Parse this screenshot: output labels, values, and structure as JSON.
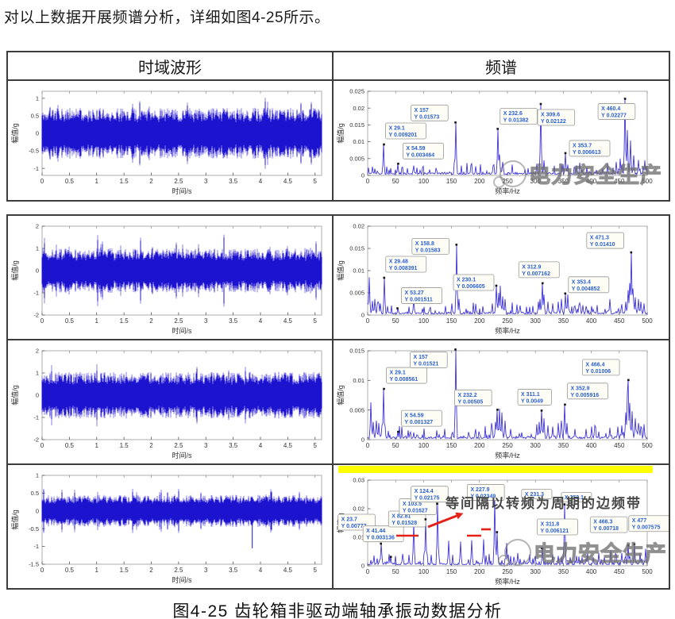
{
  "page": {
    "intro": "对以上数据开展频谱分析，详细如图4-25所示。",
    "caption": "图4-25 齿轮箱非驱动端轴承振动数据分析"
  },
  "table": {
    "headers": [
      "时域波形",
      "频谱"
    ]
  },
  "watermark": {
    "text": "电力安全生产"
  },
  "colors": {
    "waveform": "#1c13cf",
    "waveform_light": "#8a80ea",
    "spectrum": "#4036d6",
    "datatip_text": "#2a5fd0",
    "datatip_bg": "#fdfdf6",
    "datatip_border": "#999999",
    "highlight": "#ffff00",
    "annotation_red": "#e32116",
    "axis": "#9a9a9a",
    "tick_text": "#333333"
  },
  "chart_data": [
    {
      "slot": "time-1",
      "type": "line",
      "kind": "time",
      "seed": 11,
      "xlabel": "时间/s",
      "ylabel": "幅值/g",
      "xlim": [
        0,
        5.12
      ],
      "xtick_labels": [
        "0",
        "0.5",
        "1",
        "1.5",
        "2",
        "2.5",
        "3",
        "3.5",
        "4",
        "4.5",
        "5"
      ],
      "ylim": [
        -1.2,
        1.2
      ],
      "ytick_labels": [
        "-1",
        "-0.5",
        "0",
        "0.5",
        "1"
      ],
      "band": 0.72,
      "spike": 1.12
    },
    {
      "slot": "spec-1",
      "type": "line",
      "kind": "spectrum",
      "seed": 21,
      "watermark": true,
      "xlabel": "频率/Hz",
      "ylabel": "幅值/g",
      "xlim": [
        0,
        500
      ],
      "xtick_labels": [
        "0",
        "50",
        "100",
        "150",
        "200",
        "250",
        "300",
        "350",
        "400",
        "450",
        "500"
      ],
      "ylim": [
        0,
        0.025
      ],
      "ytick_labels": [
        "0",
        "0.005",
        "0.01",
        "0.015",
        "0.02",
        "0.025"
      ],
      "peaks": [
        {
          "X": "29.1",
          "Y": "0.009201",
          "ox": 2,
          "oy": -27
        },
        {
          "X": "54.59",
          "Y": "0.003464",
          "ox": 6,
          "oy": -26
        },
        {
          "X": "157",
          "Y": "0.01573",
          "ox": -56,
          "oy": -22
        },
        {
          "X": "232.6",
          "Y": "0.01382",
          "ox": 3,
          "oy": -26
        },
        {
          "X": "309.6",
          "Y": "0.02122",
          "ox": -4,
          "oy": 7
        },
        {
          "X": "353.7",
          "Y": "0.006613",
          "ox": 5,
          "oy": -16
        },
        {
          "X": "460.4",
          "Y": "0.02277",
          "ox": -34,
          "oy": 6
        }
      ],
      "extra_peaks": [
        [
          8,
          0.0026
        ],
        [
          13,
          0.002
        ],
        [
          82,
          0.0029
        ],
        [
          225,
          0.003
        ],
        [
          236,
          0.0062
        ],
        [
          241,
          0.004
        ],
        [
          302,
          0.0035
        ],
        [
          315,
          0.0045
        ],
        [
          347,
          0.0032
        ],
        [
          420,
          0.002
        ],
        [
          445,
          0.004
        ],
        [
          452,
          0.005
        ],
        [
          465,
          0.0135
        ],
        [
          470,
          0.0104
        ],
        [
          476,
          0.006
        ],
        [
          484,
          0.0046
        ],
        [
          496,
          0.0045
        ]
      ]
    },
    {
      "slot": "time-2",
      "type": "line",
      "kind": "time",
      "seed": 12,
      "xlabel": "时间/s",
      "ylabel": "幅值/g",
      "xlim": [
        0,
        5.12
      ],
      "xtick_labels": [
        "0",
        "0.5",
        "1",
        "1.5",
        "2",
        "2.5",
        "3",
        "3.5",
        "4",
        "4.5",
        "5"
      ],
      "ylim": [
        -2,
        2
      ],
      "ytick_labels": [
        "-2",
        "-1",
        "0",
        "1",
        "2"
      ],
      "band": 1.0,
      "spike": 1.62
    },
    {
      "slot": "spec-2",
      "type": "line",
      "kind": "spectrum",
      "seed": 22,
      "xlabel": "频率/Hz",
      "ylabel": "幅值/g",
      "xlim": [
        0,
        500
      ],
      "xtick_labels": [
        "0",
        "50",
        "100",
        "150",
        "200",
        "250",
        "300",
        "350",
        "400",
        "450",
        "500"
      ],
      "ylim": [
        0,
        0.02
      ],
      "ytick_labels": [
        "0",
        "0.005",
        "0.01",
        "0.015",
        "0.02"
      ],
      "peaks": [
        {
          "X": "29.48",
          "Y": "0.008391",
          "ox": 2,
          "oy": -27
        },
        {
          "X": "53.27",
          "Y": "0.001511",
          "ox": 5,
          "oy": -26
        },
        {
          "X": "158.8",
          "Y": "0.01583",
          "ox": -56,
          "oy": -8
        },
        {
          "X": "230.1",
          "Y": "0.006605",
          "ox": -54,
          "oy": -14
        },
        {
          "X": "312.9",
          "Y": "0.007162",
          "ox": -30,
          "oy": -27
        },
        {
          "X": "353.4",
          "Y": "0.004852",
          "ox": 4,
          "oy": -21
        },
        {
          "X": "471.3",
          "Y": "0.01410",
          "ox": -56,
          "oy": -25
        }
      ],
      "extra_peaks": [
        [
          3,
          0.0085
        ],
        [
          8,
          0.0032
        ],
        [
          13,
          0.0036
        ],
        [
          18,
          0.003
        ],
        [
          23,
          0.0026
        ],
        [
          35,
          0.002
        ],
        [
          82,
          0.0036
        ],
        [
          150,
          0.0026
        ],
        [
          163,
          0.0036
        ],
        [
          234,
          0.005
        ],
        [
          237,
          0.0066
        ],
        [
          241,
          0.0042
        ],
        [
          246,
          0.0036
        ],
        [
          305,
          0.003
        ],
        [
          308,
          0.0036
        ],
        [
          316,
          0.0046
        ],
        [
          322,
          0.003
        ],
        [
          331,
          0.0026
        ],
        [
          341,
          0.003
        ],
        [
          346,
          0.0036
        ],
        [
          358,
          0.0046
        ],
        [
          391,
          0.002
        ],
        [
          401,
          0.002
        ],
        [
          433,
          0.0036
        ],
        [
          462,
          0.003
        ],
        [
          466,
          0.0056
        ],
        [
          469,
          0.0072
        ],
        [
          474,
          0.006
        ],
        [
          478,
          0.004
        ],
        [
          484,
          0.0036
        ],
        [
          489,
          0.003
        ],
        [
          494,
          0.0026
        ]
      ]
    },
    {
      "slot": "time-3",
      "type": "line",
      "kind": "time",
      "seed": 13,
      "xlabel": "时间/s",
      "ylabel": "幅值/g",
      "xlim": [
        0,
        5.12
      ],
      "xtick_labels": [
        "0",
        "0.5",
        "1",
        "1.5",
        "2",
        "2.5",
        "3",
        "3.5",
        "4",
        "4.5",
        "5"
      ],
      "ylim": [
        -2,
        2
      ],
      "ytick_labels": [
        "-2",
        "-1",
        "0",
        "1",
        "2"
      ],
      "band": 1.05,
      "spike": 1.7
    },
    {
      "slot": "spec-3",
      "type": "line",
      "kind": "spectrum",
      "seed": 23,
      "xlabel": "频率/Hz",
      "ylabel": "幅值/g",
      "xlim": [
        0,
        500
      ],
      "xtick_labels": [
        "0",
        "50",
        "100",
        "150",
        "200",
        "250",
        "300",
        "350",
        "400",
        "450",
        "500"
      ],
      "ylim": [
        0,
        0.015
      ],
      "ytick_labels": [
        "0",
        "0.005",
        "0.01",
        "0.015"
      ],
      "peaks": [
        {
          "X": "29.1",
          "Y": "0.008561",
          "ox": 3,
          "oy": -27
        },
        {
          "X": "54.59",
          "Y": "0.001327",
          "ox": 4,
          "oy": -27
        },
        {
          "X": "157",
          "Y": "0.01521",
          "ox": -57,
          "oy": 3
        },
        {
          "X": "232.2",
          "Y": "0.00505",
          "ox": -54,
          "oy": -25
        },
        {
          "X": "311.1",
          "Y": "0.0049",
          "ox": -30,
          "oy": -27
        },
        {
          "X": "352.9",
          "Y": "0.005916",
          "ox": 3,
          "oy": -27
        },
        {
          "X": "466.4",
          "Y": "0.01006",
          "ox": -58,
          "oy": -26
        }
      ],
      "extra_peaks": [
        [
          6,
          0.0063
        ],
        [
          10,
          0.003
        ],
        [
          15,
          0.0032
        ],
        [
          20,
          0.0028
        ],
        [
          26,
          0.0024
        ],
        [
          82,
          0.0012
        ],
        [
          150,
          0.001
        ],
        [
          222,
          0.0028
        ],
        [
          228,
          0.003
        ],
        [
          236,
          0.0052
        ],
        [
          240,
          0.0046
        ],
        [
          246,
          0.0032
        ],
        [
          255,
          0.0018
        ],
        [
          276,
          0.0012
        ],
        [
          302,
          0.0026
        ],
        [
          307,
          0.003
        ],
        [
          316,
          0.0036
        ],
        [
          322,
          0.0024
        ],
        [
          331,
          0.0022
        ],
        [
          341,
          0.0028
        ],
        [
          346,
          0.0032
        ],
        [
          357,
          0.0028
        ],
        [
          371,
          0.0018
        ],
        [
          391,
          0.0016
        ],
        [
          401,
          0.0022
        ],
        [
          406,
          0.0024
        ],
        [
          433,
          0.002
        ],
        [
          447,
          0.0022
        ],
        [
          455,
          0.0024
        ],
        [
          462,
          0.0046
        ],
        [
          464,
          0.0078
        ],
        [
          469,
          0.0062
        ],
        [
          473,
          0.0048
        ],
        [
          478,
          0.0036
        ],
        [
          484,
          0.0028
        ],
        [
          489,
          0.0022
        ],
        [
          494,
          0.0026
        ]
      ]
    },
    {
      "slot": "time-4",
      "type": "line",
      "kind": "time",
      "seed": 14,
      "xlabel": "时间/s",
      "ylabel": "幅值/g",
      "xlim": [
        0,
        5.12
      ],
      "xtick_labels": [
        "0",
        "0.5",
        "1",
        "1.5",
        "2",
        "2.5",
        "3",
        "3.5",
        "4",
        "4.5",
        "5"
      ],
      "ylim": [
        -1.5,
        1
      ],
      "ytick_labels": [
        "-1.5",
        "-1",
        "-0.5",
        "0",
        "0.5",
        "1"
      ],
      "band": 0.45,
      "spike": 0.62,
      "dropout": {
        "t": 3.85,
        "v": -1.05
      }
    },
    {
      "slot": "spec-4",
      "type": "line",
      "kind": "spectrum",
      "seed": 24,
      "watermark": true,
      "highlight": true,
      "xlabel": "频率/Hz",
      "ylabel": "幅值/g",
      "xlim": [
        0,
        500
      ],
      "xtick_labels": [
        "0",
        "50",
        "100",
        "150",
        "200",
        "250",
        "300",
        "350",
        "400",
        "450",
        "500"
      ],
      "ylim": [
        0,
        0.03
      ],
      "ytick_labels": [
        "0",
        "0.01",
        "0.02",
        "0.03"
      ],
      "peaks": [
        {
          "X": "23.7",
          "Y": "0.00777",
          "ox": -54,
          "oy": -37
        },
        {
          "X": "41.44",
          "Y": "0.003136",
          "ox": -35,
          "oy": -39
        },
        {
          "X": "82.81",
          "Y": "0.01528",
          "ox": -32,
          "oy": -14
        },
        {
          "X": "103.5",
          "Y": "0.01627",
          "ox": -33,
          "oy": -26
        },
        {
          "X": "124.4",
          "Y": "0.02175",
          "ox": -33,
          "oy": -22
        },
        {
          "X": "227.9",
          "Y": "0.02349",
          "ox": -35,
          "oy": -18
        },
        {
          "X": "231.3",
          "single": true,
          "h": 0.0118,
          "ox": 31,
          "oy": -54
        },
        {
          "X": "352.1",
          "single": true,
          "h": 0.0215,
          "ox": -4,
          "oy": -15
        },
        {
          "X": "311.8",
          "Y": "0.006121",
          "ox": -6,
          "oy": -37
        },
        {
          "X": "466.3",
          "Y": "0.00718",
          "ox": -48,
          "oy": -36
        },
        {
          "X": "477",
          "Y": "0.007575",
          "ox": -7,
          "oy": -36
        }
      ],
      "extra_peaks": [
        [
          62.1,
          0.0042
        ],
        [
          145,
          0.0088
        ],
        [
          165.6,
          0.0085
        ],
        [
          186.3,
          0.009
        ],
        [
          207,
          0.0093
        ],
        [
          248.4,
          0.008
        ],
        [
          269,
          0.0045
        ],
        [
          290,
          0.004
        ],
        [
          300,
          0.0035
        ],
        [
          331,
          0.004
        ],
        [
          341,
          0.0035
        ],
        [
          362,
          0.003
        ],
        [
          373,
          0.0035
        ],
        [
          383,
          0.003
        ],
        [
          393,
          0.0045
        ],
        [
          404,
          0.003
        ],
        [
          414,
          0.0045
        ],
        [
          424,
          0.003
        ],
        [
          435,
          0.0055
        ],
        [
          445,
          0.004
        ],
        [
          455,
          0.0045
        ],
        [
          487,
          0.0045
        ],
        [
          497,
          0.006
        ]
      ],
      "red_segments": [
        [
          76,
          78,
          104
        ],
        [
          165,
          78,
          183
        ],
        [
          183,
          70,
          195
        ]
      ],
      "red_arrow": {
        "x1": 116,
        "y1": 67,
        "x2": 152,
        "y2": 53
      },
      "side_text": {
        "label": "等间隔以转频为周期的边频带",
        "x": 138,
        "y": 43
      }
    }
  ]
}
